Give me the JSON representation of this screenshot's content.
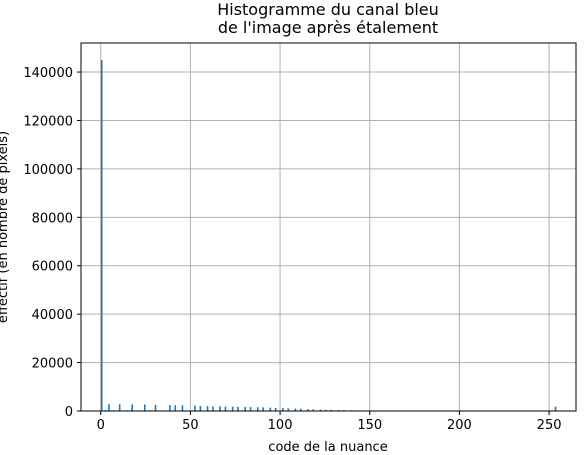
{
  "chart_data": {
    "type": "bar",
    "title_line1": "Histogramme du canal bleu",
    "title_line2": "de l'image après étalement",
    "xlabel": "code de la nuance",
    "ylabel": "effectif (en nombre de pixels)",
    "xlim": [
      -11,
      265
    ],
    "ylim": [
      0,
      152000
    ],
    "xticks": [
      "0",
      "50",
      "100",
      "150",
      "200",
      "250"
    ],
    "yticks": [
      "0",
      "20000",
      "40000",
      "60000",
      "80000",
      "100000",
      "120000",
      "140000"
    ],
    "grid": true,
    "bar_color": "#1f77b4",
    "x": [
      0,
      2,
      4,
      7,
      10,
      14,
      17,
      21,
      24,
      27,
      30,
      34,
      38,
      41,
      45,
      52,
      55,
      59,
      62,
      66,
      69,
      73,
      76,
      80,
      83,
      87,
      90,
      94,
      97,
      101,
      104,
      108,
      111,
      115,
      118,
      122,
      125,
      128,
      132,
      135,
      139,
      142,
      146,
      149,
      253
    ],
    "values": [
      145000,
      400,
      2800,
      300,
      2800,
      300,
      2700,
      300,
      2700,
      300,
      2600,
      300,
      2500,
      2400,
      2300,
      2200,
      2100,
      2000,
      1900,
      1900,
      1800,
      1800,
      1700,
      1700,
      1600,
      1600,
      1500,
      1400,
      1300,
      1200,
      1100,
      1000,
      900,
      800,
      700,
      600,
      500,
      450,
      400,
      350,
      300,
      250,
      200,
      150,
      1800
    ]
  }
}
